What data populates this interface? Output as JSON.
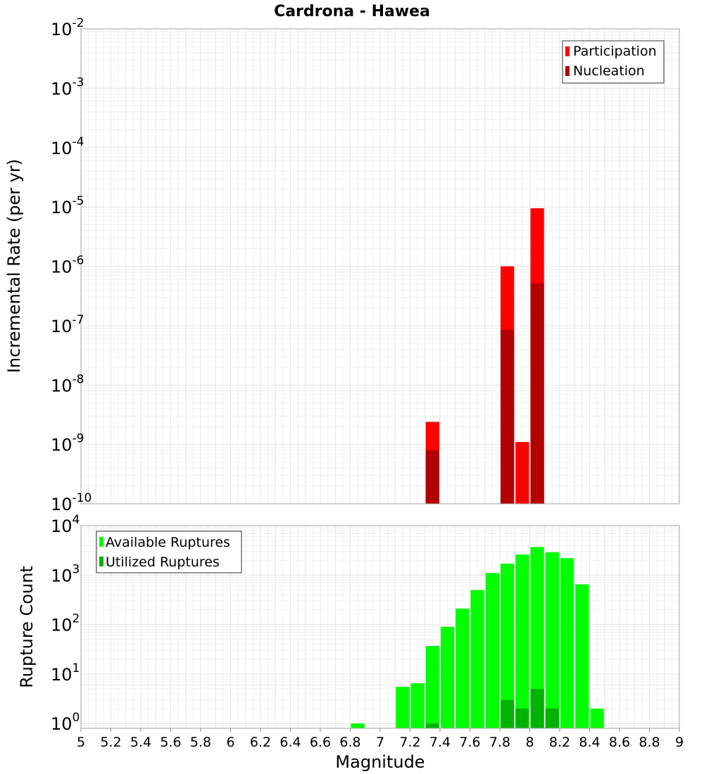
{
  "chart_data": [
    {
      "type": "bar",
      "title": "Cardrona - Hawea",
      "xlabel": "",
      "ylabel": "Incremental Rate (per yr)",
      "yscale": "log",
      "ylim": [
        1e-10,
        0.01
      ],
      "xlim": [
        5,
        9
      ],
      "bin_width": 0.1,
      "grid": true,
      "legend_position": "top-right",
      "y_ticks": [
        {
          "base": "10",
          "exp": "-10"
        },
        {
          "base": "10",
          "exp": "-9"
        },
        {
          "base": "10",
          "exp": "-8"
        },
        {
          "base": "10",
          "exp": "-7"
        },
        {
          "base": "10",
          "exp": "-6"
        },
        {
          "base": "10",
          "exp": "-5"
        },
        {
          "base": "10",
          "exp": "-4"
        },
        {
          "base": "10",
          "exp": "-3"
        },
        {
          "base": "10",
          "exp": "-2"
        }
      ],
      "series": [
        {
          "name": "Participation",
          "color": "#ff0000",
          "x": [
            7.35,
            7.85,
            7.95,
            8.05
          ],
          "values": [
            2.4e-09,
            1e-06,
            1.1e-09,
            9.5e-06
          ]
        },
        {
          "name": "Nucleation",
          "color": "#b30000",
          "x": [
            7.35,
            7.85,
            8.05
          ],
          "values": [
            8e-10,
            8.5e-08,
            5.2e-07
          ]
        }
      ]
    },
    {
      "type": "bar",
      "title": "",
      "xlabel": "Magnitude",
      "ylabel": "Rupture Count",
      "yscale": "log",
      "ylim": [
        0.8,
        10000
      ],
      "xlim": [
        5,
        9
      ],
      "bin_width": 0.1,
      "grid": true,
      "legend_position": "top-left",
      "x_ticks": [
        "5",
        "5.2",
        "5.4",
        "5.6",
        "5.8",
        "6",
        "6.2",
        "6.4",
        "6.6",
        "6.8",
        "7",
        "7.2",
        "7.4",
        "7.6",
        "7.8",
        "8",
        "8.2",
        "8.4",
        "8.6",
        "8.8",
        "9"
      ],
      "y_ticks": [
        {
          "base": "10",
          "exp": "0"
        },
        {
          "base": "10",
          "exp": "1"
        },
        {
          "base": "10",
          "exp": "2"
        },
        {
          "base": "10",
          "exp": "3"
        },
        {
          "base": "10",
          "exp": "4"
        }
      ],
      "series": [
        {
          "name": "Available Ruptures",
          "color": "#00ff00",
          "x": [
            6.85,
            7.15,
            7.25,
            7.35,
            7.45,
            7.55,
            7.65,
            7.75,
            7.85,
            7.95,
            8.05,
            8.15,
            8.25,
            8.35,
            8.45
          ],
          "values": [
            1,
            5.5,
            6.5,
            37,
            90,
            210,
            500,
            1100,
            1700,
            2600,
            3700,
            2900,
            2200,
            650,
            2
          ]
        },
        {
          "name": "Utilized Ruptures",
          "color": "#00b300",
          "x": [
            7.35,
            7.85,
            7.95,
            8.05,
            8.15
          ],
          "values": [
            1,
            3,
            2,
            5,
            2
          ]
        }
      ]
    }
  ]
}
